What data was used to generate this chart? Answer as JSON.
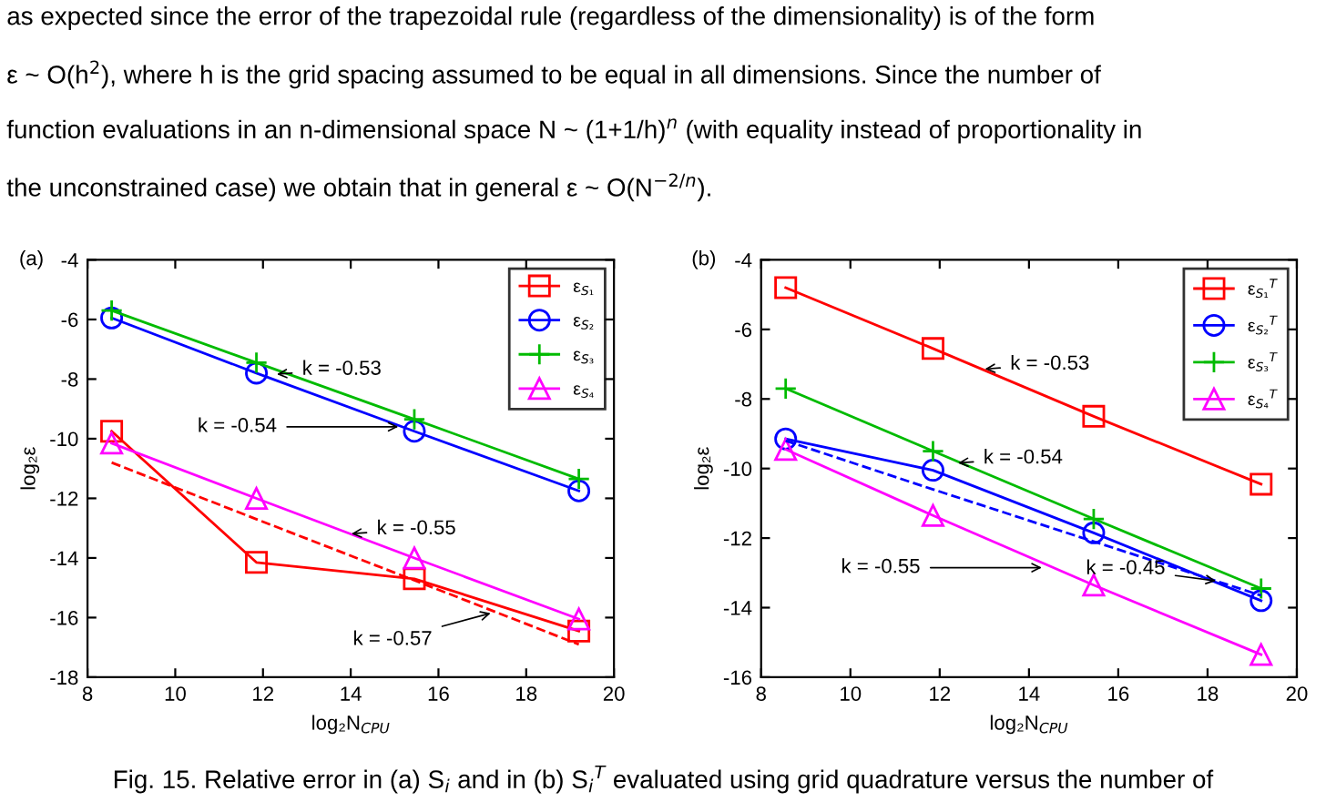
{
  "chart_data": [
    {
      "type": "line",
      "title": "(a)",
      "subtitle": "as expected since the error of the trapezoidal rule (regardless of the dimensionality) is of the form\nε ~ O(h$^{2}$), where h is the grid spacing assumed to be equal in all dimensions. Since the number of\nfunction evaluations in an n-dimensional space N ~ (1+1/h)$^{n}$ (with equality instead of proportionality in\nthe unconstrained case) we obtain that in general ε ~ O(N$^{−2/n}$).",
      "xlabel": "log₂N$_{CPU}$",
      "ylabel": "log₂ε",
      "x": [
        8.55,
        11.85,
        15.45,
        19.2
      ],
      "xlim": [
        8,
        20
      ],
      "xticks": [
        8,
        10,
        12,
        14,
        16,
        18,
        20
      ],
      "ylim": [
        -18,
        -4
      ],
      "yticks": [
        -18,
        -16,
        -14,
        -12,
        -10,
        -8,
        -6,
        -4
      ],
      "legend": "top right",
      "grid": false,
      "series": [
        {
          "name": "ε$_{S₁}$",
          "color": "#ff0000",
          "marker": "square",
          "values": [
            -9.75,
            -14.15,
            -14.7,
            -16.45
          ]
        },
        {
          "name": "ε$_{S₂}$",
          "color": "#0000ff",
          "marker": "circle",
          "values": [
            -5.95,
            -7.8,
            -9.75,
            -11.75
          ]
        },
        {
          "name": "ε$_{S₃}$",
          "color": "#00bb00",
          "marker": "cross",
          "values": [
            -5.7,
            -7.45,
            -9.35,
            -11.35
          ]
        },
        {
          "name": "ε$_{S₄}$",
          "color": "#ff00ff",
          "marker": "triangle",
          "values": [
            -10.15,
            -12.0,
            -14.0,
            -16.05
          ]
        },
        {
          "color": "#ff0000",
          "marker": "none",
          "line_style": "dashed",
          "values": [
            -10.8,
            -12.7,
            -14.75,
            -16.9
          ]
        }
      ],
      "annotations": [
        {
          "text": "k = -0.53",
          "x": 12.2,
          "y": -7.85
        },
        {
          "text": "k = -0.54",
          "x": 15.2,
          "y": -9.6
        },
        {
          "text": "k = -0.55",
          "x": 13.9,
          "y": -13.2
        },
        {
          "text": "k = -0.57",
          "x": 17.3,
          "y": -15.81
        },
        "Fig. 15. Relative error in (a) S$_{i}$ and in (b) S$_{i}$$^{T}$ evaluated using grid quadrature versus the number of"
      ]
    },
    {
      "type": "line",
      "title": "(b)",
      "xlabel": "log₂N$_{CPU}$",
      "ylabel": "log₂ε",
      "x": [
        8.55,
        11.85,
        15.45,
        19.2
      ],
      "xlim": [
        8,
        20
      ],
      "xticks": [
        8,
        10,
        12,
        14,
        16,
        18,
        20
      ],
      "ylim": [
        -16,
        -4
      ],
      "yticks": [
        -16,
        -14,
        -12,
        -10,
        -8,
        -6,
        -4
      ],
      "legend": "top right",
      "grid": false,
      "series": [
        {
          "name": "ε$_{S₁}$$^{T}$",
          "color": "#ff0000",
          "marker": "square",
          "values": [
            -4.8,
            -6.55,
            -8.5,
            -10.45
          ]
        },
        {
          "name": "ε$_{S₂}$$^{T}$",
          "color": "#0000ff",
          "marker": "circle",
          "values": [
            -9.15,
            -10.05,
            -11.85,
            -13.8
          ]
        },
        {
          "name": "ε$_{S₃}$$^{T}$",
          "color": "#00bb00",
          "marker": "cross",
          "values": [
            -7.7,
            -9.5,
            -11.45,
            -13.45
          ]
        },
        {
          "name": "ε$_{S₄}$$^{T}$",
          "color": "#ff00ff",
          "marker": "triangle",
          "values": [
            -9.45,
            -11.35,
            -13.35,
            -15.35
          ]
        },
        {
          "color": "#0000ff",
          "marker": "none",
          "line_style": "dashed",
          "values": [
            -9.2,
            -10.6,
            -12.1,
            -13.65
          ]
        }
      ],
      "annotations": [
        {
          "text": "k = -0.53",
          "x": 12.9,
          "y": -7.15
        },
        {
          "text": "k = -0.54",
          "x": 12.3,
          "y": -9.85
        },
        {
          "text": "k = -0.55",
          "x": 14.4,
          "y": -12.85
        },
        {
          "text": "k = -0.45",
          "x": 18.3,
          "y": -13.25
        }
      ]
    }
  ]
}
